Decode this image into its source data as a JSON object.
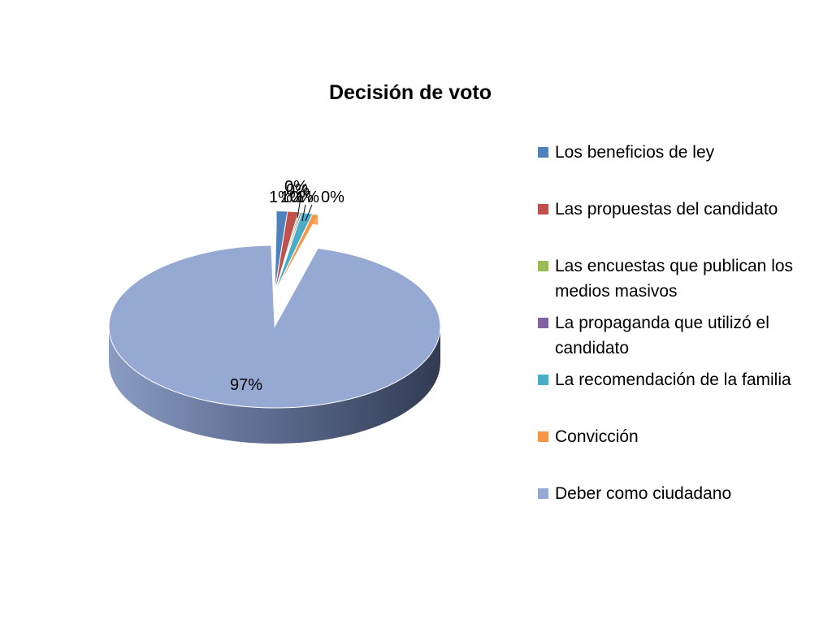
{
  "chart_data": {
    "type": "pie",
    "title": "Decisión de voto",
    "legend_position": "right",
    "slices": [
      {
        "name": "Los beneficios de ley",
        "value": 1,
        "label": "1%",
        "color": "#4F81BD"
      },
      {
        "name": "Las propuestas del candidato",
        "value": 1,
        "label": "1%",
        "color": "#C0504D"
      },
      {
        "name": "Las encuestas que publican los medios masivos",
        "value": 0,
        "label": "0%",
        "color": "#9BBB59"
      },
      {
        "name": "La propaganda que utilizó el candidato",
        "value": 0,
        "label": "0%",
        "color": "#8064A2"
      },
      {
        "name": "La recomendación de la familia",
        "value": 1,
        "label": "1%",
        "color": "#4BACC6"
      },
      {
        "name": "Convicción",
        "value": 0,
        "label": "0%",
        "color": "#F79646"
      },
      {
        "name": "Deber como ciudadano",
        "value": 97,
        "label": "97%",
        "color": "#95A9D3"
      }
    ],
    "extra_labels": [
      "0%"
    ]
  }
}
